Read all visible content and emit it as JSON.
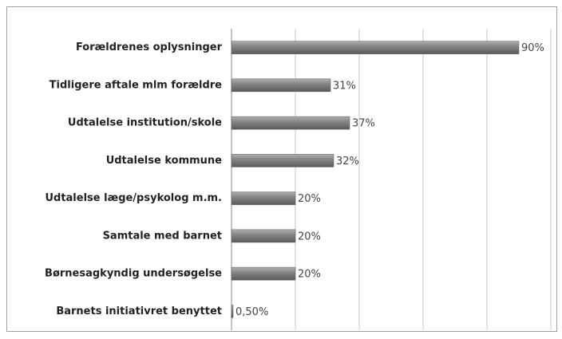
{
  "chart_data": {
    "type": "bar",
    "orientation": "horizontal",
    "categories": [
      "Forældrenes oplysninger",
      "Tidligere aftale mlm forældre",
      "Udtalelse institution/skole",
      "Udtalelse kommune",
      "Udtalelse læge/psykolog m.m.",
      "Samtale med barnet",
      "Børnesagkyndig undersøgelse",
      "Barnets initiativret benyttet"
    ],
    "values": [
      90,
      31,
      37,
      32,
      20,
      20,
      20,
      0.5
    ],
    "value_labels": [
      "90%",
      "31%",
      "37%",
      "32%",
      "20%",
      "20%",
      "20%",
      "0,50%"
    ],
    "color": "#808080",
    "xlim": [
      0,
      100
    ],
    "xticks": [
      0,
      20,
      40,
      60,
      80,
      100
    ],
    "grid": true
  }
}
